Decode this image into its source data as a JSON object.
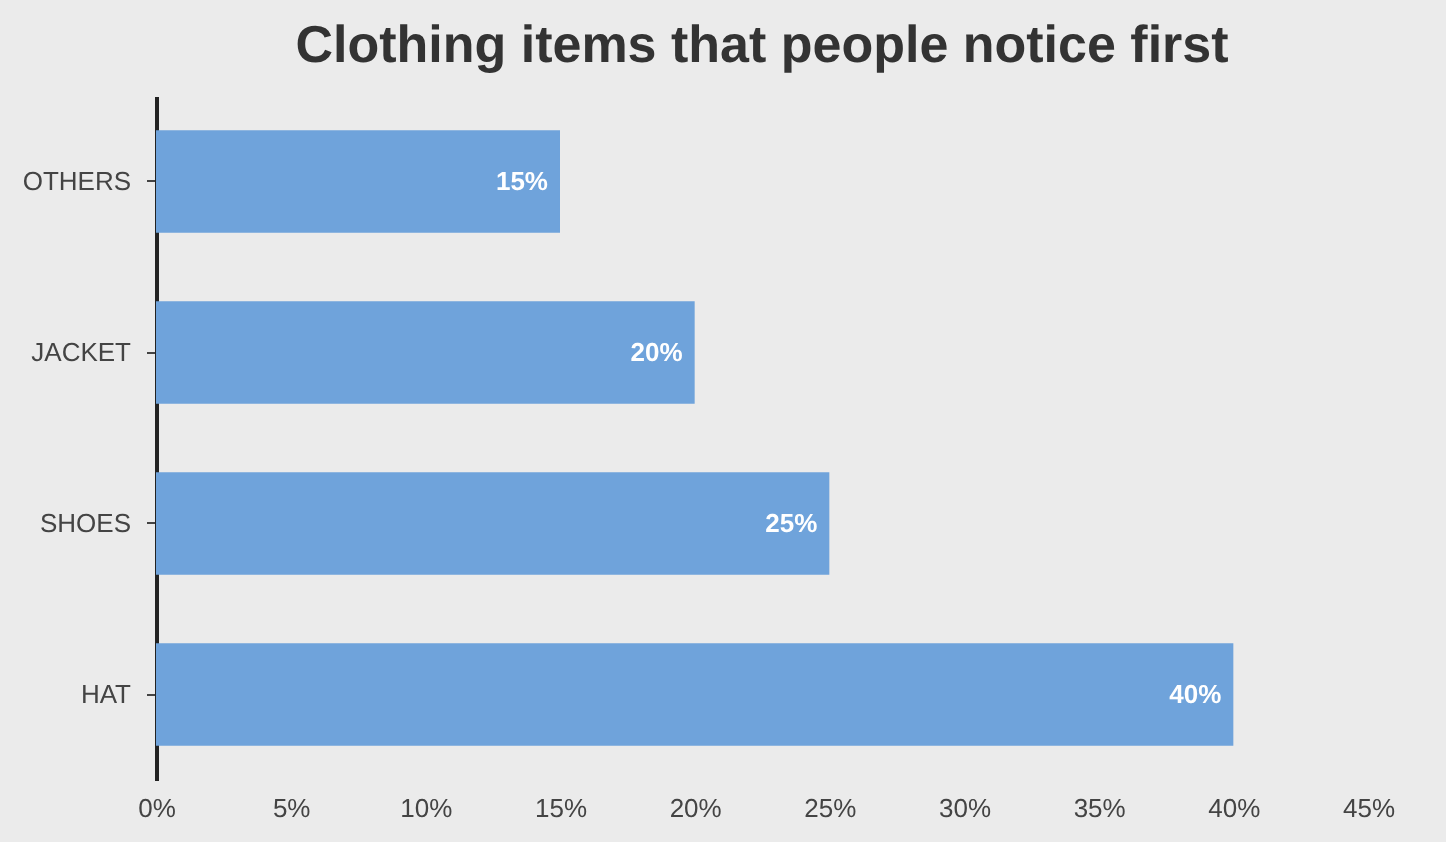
{
  "chart_data": {
    "type": "bar",
    "orientation": "horizontal",
    "title": "Clothing items that people notice first",
    "categories": [
      "OTHERS",
      "JACKET",
      "SHOES",
      "HAT"
    ],
    "values": [
      15,
      20,
      25,
      40
    ],
    "color": "#6fa3db",
    "value_labels": [
      "15%",
      "20%",
      "25%",
      "40%"
    ],
    "xlim": [
      0,
      45
    ],
    "xticks": [
      {
        "value": 0,
        "label": "0%"
      },
      {
        "value": 5,
        "label": "5%"
      },
      {
        "value": 10,
        "label": "10%"
      },
      {
        "value": 15,
        "label": "15%"
      },
      {
        "value": 20,
        "label": "20%"
      },
      {
        "value": 25,
        "label": "25%"
      },
      {
        "value": 30,
        "label": "30%"
      },
      {
        "value": 35,
        "label": "35%"
      },
      {
        "value": 40,
        "label": "40%"
      },
      {
        "value": 45,
        "label": "45%"
      }
    ],
    "grid": false
  }
}
